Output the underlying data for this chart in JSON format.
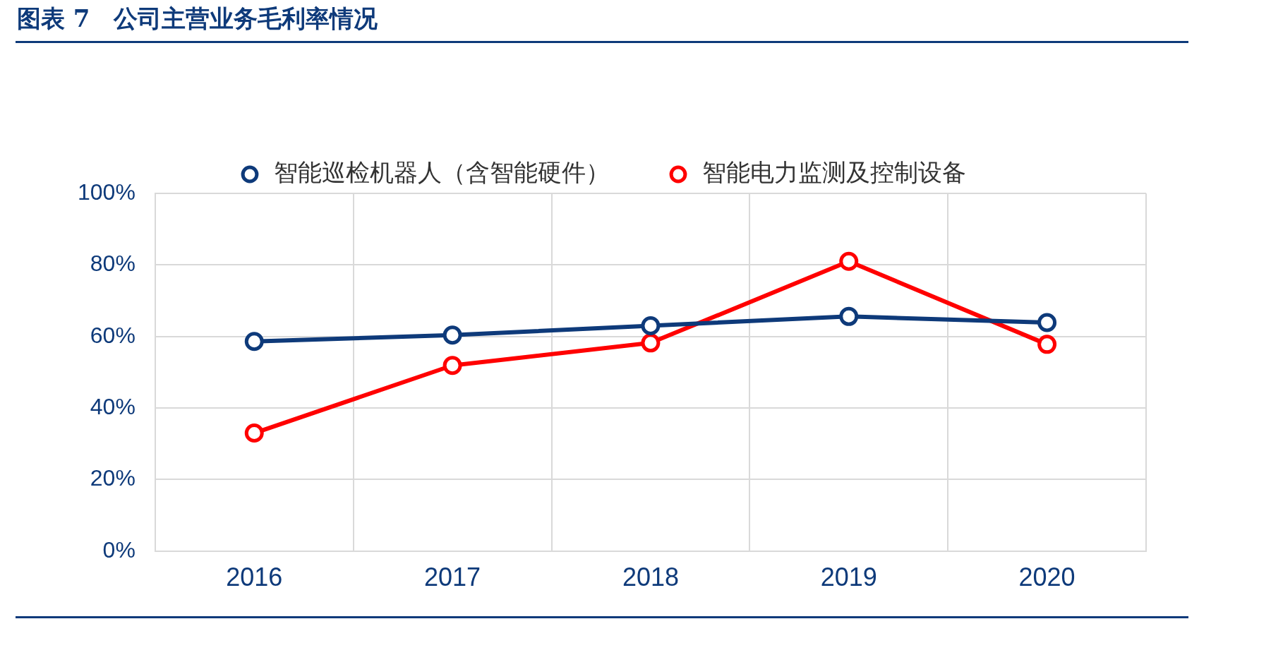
{
  "chart_data": {
    "type": "line",
    "title": "图表 7　公司主营业务毛利率情况",
    "categories": [
      "2016",
      "2017",
      "2018",
      "2019",
      "2020"
    ],
    "series": [
      {
        "name": "智能巡检机器人（含智能硬件）",
        "color": "#0e3a7a",
        "values": [
          58.6,
          60.4,
          63,
          65.6,
          63.9
        ]
      },
      {
        "name": "智能电力监测及控制设备",
        "color": "#ff0000",
        "values": [
          33,
          51.9,
          58.2,
          81,
          57.8
        ]
      }
    ],
    "ylim": [
      0,
      100
    ],
    "yticks": [
      {
        "value": 0,
        "label": "0%"
      },
      {
        "value": 20,
        "label": "20%"
      },
      {
        "value": 40,
        "label": "40%"
      },
      {
        "value": 60,
        "label": "60%"
      },
      {
        "value": 80,
        "label": "80%"
      },
      {
        "value": 100,
        "label": "100%"
      }
    ],
    "grid": true,
    "legend": "top",
    "marker": "circle",
    "line_style": "solid"
  }
}
